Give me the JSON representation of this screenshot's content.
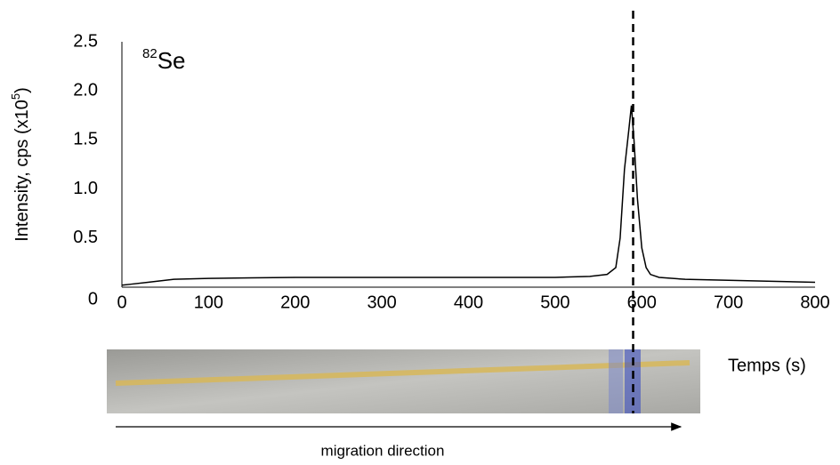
{
  "chart_data": {
    "type": "line",
    "ylabel": {
      "text": "Intensity, cps (x10",
      "sup": "5",
      "end": ")"
    },
    "annotation": {
      "sup": "82",
      "text": "Se"
    },
    "xlabel": "Temps (s)",
    "caption": "migration direction",
    "x": [
      0,
      10,
      30,
      60,
      100,
      150,
      200,
      250,
      300,
      350,
      400,
      450,
      500,
      540,
      560,
      570,
      575,
      580,
      585,
      588,
      591,
      595,
      600,
      605,
      610,
      620,
      650,
      700,
      750,
      800
    ],
    "series": [
      {
        "color": "#000000",
        "values": [
          0.02,
          0.03,
          0.05,
          0.08,
          0.09,
          0.095,
          0.1,
          0.1,
          0.1,
          0.1,
          0.1,
          0.1,
          0.1,
          0.11,
          0.13,
          0.2,
          0.5,
          1.2,
          1.6,
          1.85,
          1.5,
          0.9,
          0.4,
          0.2,
          0.13,
          0.1,
          0.08,
          0.07,
          0.06,
          0.05
        ]
      }
    ],
    "xlim": [
      0,
      800
    ],
    "xticks": [
      0,
      100,
      200,
      300,
      400,
      500,
      600,
      700,
      800
    ],
    "ylim": [
      0,
      2.5
    ],
    "yticks": [
      0,
      0.5,
      {
        "value": 1,
        "label": "1.0"
      },
      1.5,
      {
        "value": 2,
        "label": "2.0"
      },
      2.5
    ],
    "vline": 590
  }
}
